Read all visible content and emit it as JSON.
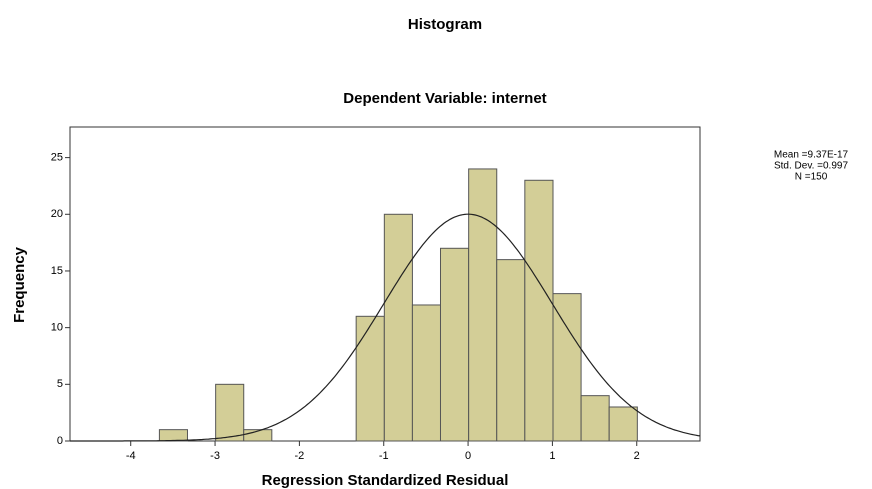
{
  "chart_data": {
    "type": "histogram",
    "title": "Histogram",
    "subtitle": "Dependent Variable: internet",
    "x_label": "Regression Standardized Residual",
    "y_label": "Frequency",
    "bins": [
      -3.66,
      -3.327,
      -2.993,
      -2.66,
      -2.327,
      -1.993,
      -1.66,
      -1.327,
      -0.993,
      -0.66,
      -0.327,
      0.007,
      0.34,
      0.673,
      1.007,
      1.34,
      1.673,
      2.007
    ],
    "values": [
      1,
      0,
      5,
      1,
      0,
      0,
      0,
      11,
      20,
      12,
      17,
      24,
      16,
      23,
      13,
      4,
      3
    ],
    "color": "#d3ce97",
    "xlim": [
      -4.72,
      2.75
    ],
    "xticks": [
      -4,
      -3,
      -2,
      -1,
      0,
      1,
      2
    ],
    "ylim": [
      0,
      27.7
    ],
    "yticks": [
      0,
      5,
      10,
      15,
      20,
      25
    ],
    "grid": false,
    "stats": [
      {
        "value": 9.37e-17,
        "label": "Mean =9.37E-17"
      },
      {
        "value": 0.997,
        "label": "Std. Dev. =0.997"
      },
      {
        "value": 150,
        "label": "N =150"
      }
    ]
  }
}
